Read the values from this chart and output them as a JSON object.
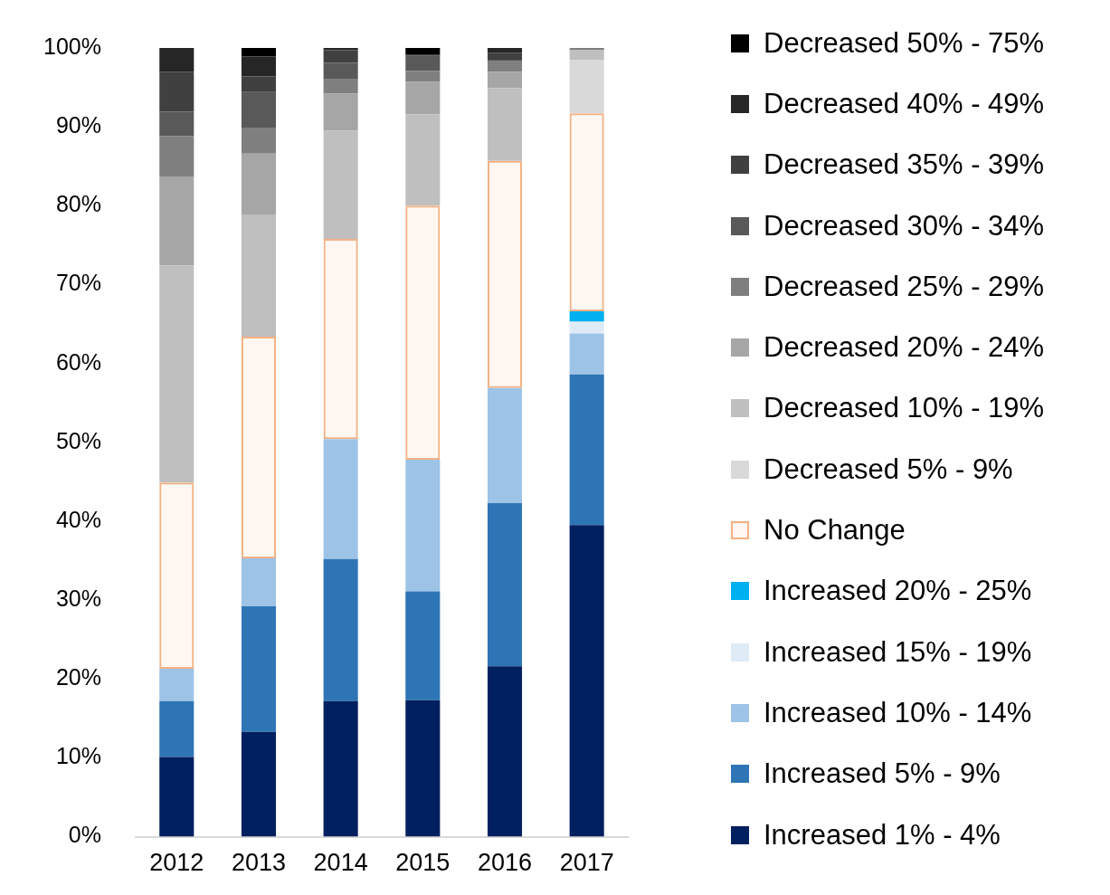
{
  "chart_data": {
    "type": "bar",
    "stacked": true,
    "categories": [
      "2012",
      "2013",
      "2014",
      "2015",
      "2016",
      "2017"
    ],
    "ylim": [
      0,
      100
    ],
    "yticks": [
      {
        "value": 0,
        "label": "0%"
      },
      {
        "value": 10,
        "label": "10%"
      },
      {
        "value": 20,
        "label": "20%"
      },
      {
        "value": 30,
        "label": "30%"
      },
      {
        "value": 40,
        "label": "40%"
      },
      {
        "value": 50,
        "label": "50%"
      },
      {
        "value": 60,
        "label": "60%"
      },
      {
        "value": 70,
        "label": "70%"
      },
      {
        "value": 80,
        "label": "80%"
      },
      {
        "value": 90,
        "label": "90%"
      },
      {
        "value": 100,
        "label": "100%"
      }
    ],
    "grid": false,
    "legend": "right",
    "series": [
      {
        "name": "Increased 1% - 4%",
        "color": "#002060",
        "values": [
          10.1,
          13.3,
          17.2,
          17.3,
          21.6,
          39.5
        ]
      },
      {
        "name": "Increased 5% - 9%",
        "color": "#2e75b6",
        "values": [
          7.1,
          15.9,
          18.0,
          13.8,
          20.7,
          19.1
        ]
      },
      {
        "name": "Increased 10% - 14%",
        "color": "#9dc3e6",
        "values": [
          4.1,
          6.1,
          15.2,
          16.7,
          14.6,
          5.2
        ]
      },
      {
        "name": "Increased 15% - 19%",
        "color": "#deebf7",
        "values": [
          0,
          0,
          0,
          0,
          0,
          1.5
        ]
      },
      {
        "name": "Increased 20% - 25%",
        "color": "#00b0f0",
        "values": [
          0,
          0,
          0,
          0,
          0,
          1.3
        ]
      },
      {
        "name": "No Change",
        "color": "#f4b183",
        "values": [
          23.6,
          28.1,
          25.4,
          32.2,
          28.8,
          25.1
        ]
      },
      {
        "name": "Decreased 5% - 9%",
        "color": "#d9d9d9",
        "values": [
          0,
          0,
          0,
          0,
          0,
          6.8
        ]
      },
      {
        "name": "Decreased 10% - 19%",
        "color": "#bfbfbf",
        "values": [
          27.5,
          15.5,
          13.7,
          11.6,
          9.2,
          1.2
        ]
      },
      {
        "name": "Decreased 20% - 24%",
        "color": "#a6a6a6",
        "values": [
          11.3,
          7.7,
          4.7,
          4.1,
          2.1,
          0
        ]
      },
      {
        "name": "Decreased 25% - 29%",
        "color": "#7f7f7f",
        "values": [
          5.1,
          3.3,
          1.8,
          1.4,
          1.3,
          0.3
        ]
      },
      {
        "name": "Decreased 30% - 34%",
        "color": "#595959",
        "values": [
          3.1,
          4.5,
          2.1,
          1.9,
          0.2,
          0
        ]
      },
      {
        "name": "Decreased 35% - 39%",
        "color": "#404040",
        "values": [
          5.1,
          2.0,
          1.6,
          0.2,
          0.9,
          0
        ]
      },
      {
        "name": "Decreased 40% - 49%",
        "color": "#262626",
        "values": [
          3.0,
          2.5,
          0.3,
          0,
          0.6,
          0
        ]
      },
      {
        "name": "Decreased 50% - 75%",
        "color": "#000000",
        "values": [
          0,
          1.1,
          0,
          0.8,
          0,
          0
        ]
      }
    ]
  }
}
